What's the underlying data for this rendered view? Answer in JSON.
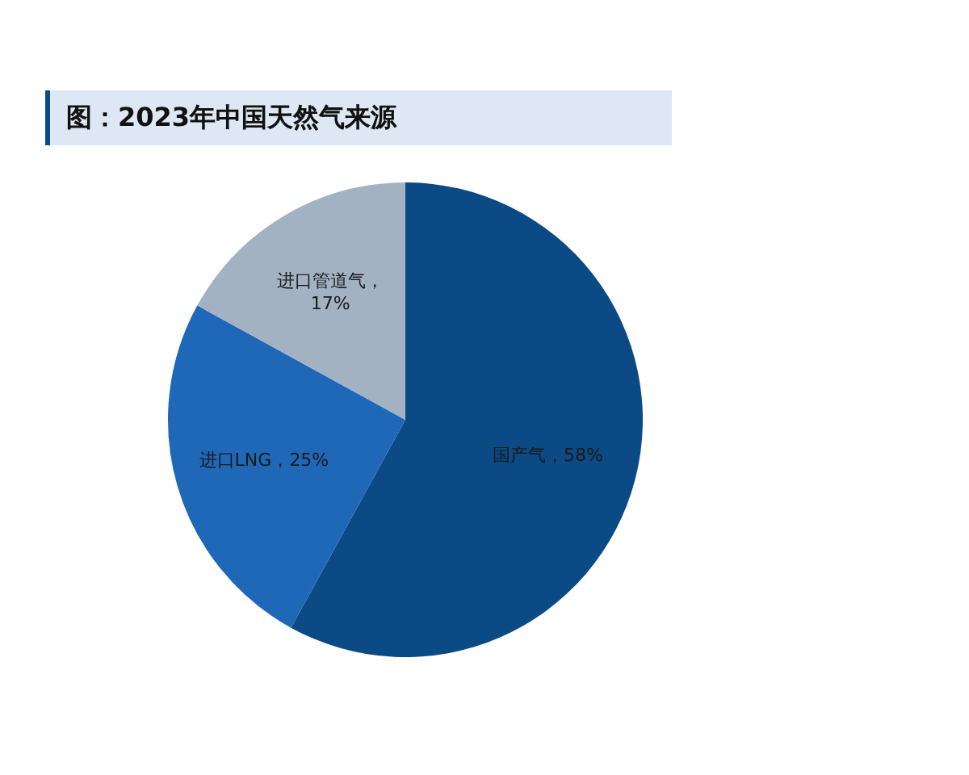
{
  "chart_data": {
    "type": "pie",
    "title": "图：2023年中国天然气来源",
    "categories": [
      "国产气",
      "进口LNG",
      "进口管道气"
    ],
    "values": [
      58,
      25,
      17
    ],
    "colors": [
      "#0b4a85",
      "#1f68b8",
      "#a3b2c2"
    ],
    "value_labels": [
      "，58%",
      "，25%",
      "，\n17%"
    ],
    "legend": false
  }
}
